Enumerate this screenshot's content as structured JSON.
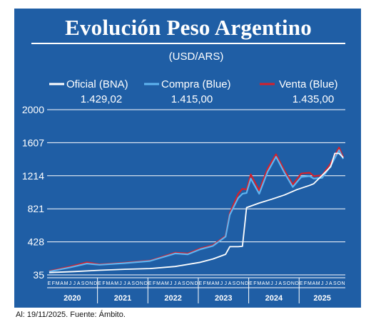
{
  "title": "Evolución Peso Argentino",
  "subtitle": "(USD/ARS)",
  "footnote": "Al: 19/11/2025. Fuente: Ámbito.",
  "colors": {
    "background": "#1f5ea5",
    "oficial": "#ffffff",
    "compra": "#5fb4f0",
    "venta": "#d6202a",
    "grid": "#ffffff"
  },
  "legend": [
    {
      "key": "oficial",
      "label": "Oficial (BNA)",
      "value": "1.429,02"
    },
    {
      "key": "compra",
      "label": "Compra (Blue)",
      "value": "1.415,00"
    },
    {
      "key": "venta",
      "label": "Venta (Blue)",
      "value": "1.435,00"
    }
  ],
  "chart_data": {
    "type": "line",
    "title": "Evolución Peso Argentino",
    "subtitle": "(USD/ARS)",
    "ylim": [
      35,
      2000
    ],
    "yticks": [
      35,
      428,
      821,
      1214,
      1607,
      2000
    ],
    "grid": true,
    "legend_position": "top",
    "month_labels": [
      "E",
      "F",
      "M",
      "A",
      "M",
      "J",
      "J",
      "A",
      "S",
      "O",
      "N",
      "D"
    ],
    "years": [
      "2020",
      "2021",
      "2022",
      "2023",
      "2024",
      "2025"
    ],
    "x_start": "2020-01",
    "x_end": "2025-11",
    "series": [
      {
        "name": "Oficial (BNA)",
        "x": [
          "2020-01",
          "2020-07",
          "2021-01",
          "2021-07",
          "2022-01",
          "2022-07",
          "2023-01",
          "2023-04",
          "2023-07",
          "2023-08",
          "2023-10",
          "2023-11",
          "2023-12",
          "2024-03",
          "2024-06",
          "2024-09",
          "2024-12",
          "2025-03",
          "2025-04",
          "2025-06",
          "2025-08",
          "2025-09",
          "2025-10",
          "2025-11"
        ],
        "values": [
          63,
          75,
          90,
          102,
          110,
          135,
          185,
          225,
          280,
          370,
          370,
          375,
          835,
          890,
          935,
          985,
          1050,
          1100,
          1120,
          1220,
          1320,
          1480,
          1480,
          1429
        ]
      },
      {
        "name": "Compra (Blue)",
        "x": [
          "2020-01",
          "2020-06",
          "2020-10",
          "2021-01",
          "2021-07",
          "2022-01",
          "2022-07",
          "2022-10",
          "2023-01",
          "2023-04",
          "2023-07",
          "2023-08",
          "2023-10",
          "2023-11",
          "2023-12",
          "2024-01",
          "2024-03",
          "2024-05",
          "2024-07",
          "2024-09",
          "2024-11",
          "2025-01",
          "2025-03",
          "2025-04",
          "2025-06",
          "2025-08",
          "2025-10",
          "2025-11"
        ],
        "values": [
          75,
          125,
          170,
          155,
          175,
          200,
          290,
          280,
          340,
          380,
          490,
          750,
          950,
          1000,
          1010,
          1180,
          1000,
          1260,
          1440,
          1250,
          1080,
          1200,
          1210,
          1180,
          1190,
          1330,
          1520,
          1415
        ]
      },
      {
        "name": "Venta (Blue)",
        "x": [
          "2020-01",
          "2020-06",
          "2020-10",
          "2021-01",
          "2021-07",
          "2022-01",
          "2022-07",
          "2022-10",
          "2023-01",
          "2023-04",
          "2023-07",
          "2023-08",
          "2023-10",
          "2023-11",
          "2023-12",
          "2024-01",
          "2024-03",
          "2024-05",
          "2024-07",
          "2024-09",
          "2024-11",
          "2025-01",
          "2025-03",
          "2025-04",
          "2025-06",
          "2025-08",
          "2025-10",
          "2025-11"
        ],
        "values": [
          80,
          135,
          185,
          160,
          180,
          205,
          300,
          290,
          350,
          390,
          500,
          770,
          1000,
          1060,
          1050,
          1230,
          1040,
          1300,
          1470,
          1280,
          1110,
          1240,
          1250,
          1210,
          1220,
          1360,
          1550,
          1435
        ]
      }
    ]
  }
}
